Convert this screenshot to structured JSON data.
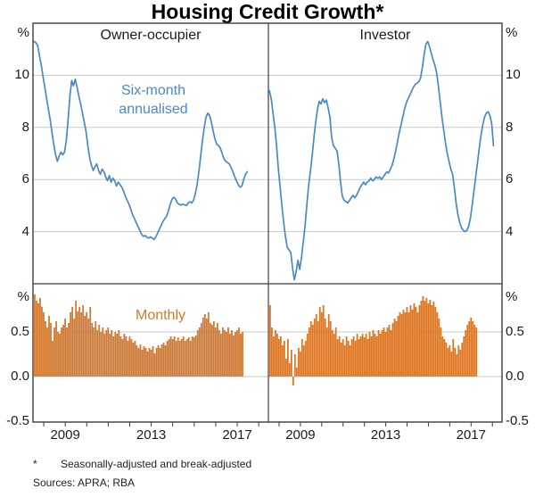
{
  "title": "Housing Credit Growth*",
  "footnote": {
    "marker": "*",
    "text": "Seasonally-adjusted and break-adjusted"
  },
  "sources": "Sources: APRA; RBA",
  "colors": {
    "line": "#4a89c8",
    "bar": "#d5782c",
    "grid": "#c9c9c9",
    "frame": "#3c3c3c",
    "text": "#1c1c1c"
  },
  "chart_data": [
    {
      "type": "line",
      "panel": "owner-occupier-six-month-annualised",
      "title": "Owner-occupier",
      "series_label": "Six-month annualised",
      "label_lines": [
        "Six-month",
        "annualised"
      ],
      "unit": "%",
      "ylim": [
        2,
        12
      ],
      "yticks": [
        10,
        8,
        6,
        4
      ],
      "ytick_labels": [
        "10",
        "8",
        "6",
        "4"
      ],
      "xlim": [
        2007.5,
        2018.45
      ],
      "xticks": [
        2009,
        2013,
        2017
      ],
      "xtick_labels": [
        "2009",
        "2013",
        "2017"
      ],
      "x_start": 2007.55,
      "x_step": "monthly",
      "values": [
        11.3,
        11.25,
        11.15,
        10.75,
        10.4,
        9.95,
        9.55,
        9.1,
        8.7,
        8.3,
        7.8,
        7.35,
        6.95,
        6.7,
        6.9,
        7.05,
        6.95,
        7.05,
        7.5,
        8.3,
        9.2,
        9.8,
        9.6,
        9.85,
        9.55,
        9.2,
        8.9,
        8.55,
        8.2,
        7.85,
        7.3,
        6.85,
        6.55,
        6.35,
        6.5,
        6.6,
        6.35,
        6.2,
        6.4,
        6.3,
        6.1,
        5.95,
        6.15,
        5.9,
        6.05,
        5.95,
        5.75,
        5.9,
        5.8,
        5.7,
        5.55,
        5.35,
        5.2,
        5.05,
        4.85,
        4.65,
        4.5,
        4.35,
        4.2,
        4.05,
        3.9,
        3.82,
        3.85,
        3.78,
        3.75,
        3.8,
        3.75,
        3.7,
        3.8,
        3.95,
        4.1,
        4.25,
        4.4,
        4.5,
        4.6,
        4.8,
        5.05,
        5.25,
        5.32,
        5.25,
        5.1,
        5.05,
        5.02,
        5.05,
        5.03,
        5.0,
        5.1,
        5.15,
        5.1,
        5.2,
        5.45,
        5.8,
        6.3,
        6.9,
        7.5,
        8.0,
        8.4,
        8.55,
        8.45,
        8.2,
        7.85,
        7.55,
        7.35,
        7.3,
        7.2,
        7.0,
        6.8,
        6.7,
        6.65,
        6.6,
        6.45,
        6.3,
        6.1,
        5.95,
        5.8,
        5.7,
        5.75,
        6.0,
        6.2,
        6.3
      ]
    },
    {
      "type": "line",
      "panel": "investor-six-month-annualised",
      "title": "Investor",
      "series_label": "Six-month annualised",
      "unit": "%",
      "ylim": [
        2,
        12
      ],
      "yticks": [
        10,
        8,
        6,
        4
      ],
      "ytick_labels": [
        "10",
        "8",
        "6",
        "4"
      ],
      "xlim": [
        2007.5,
        2018.45
      ],
      "xticks": [
        2009,
        2013,
        2017
      ],
      "xtick_labels": [
        "2009",
        "2013",
        "2017"
      ],
      "x_start": 2007.55,
      "x_step": "monthly",
      "values": [
        9.4,
        9.1,
        8.55,
        8.0,
        7.3,
        6.4,
        5.7,
        5.0,
        4.35,
        3.8,
        3.4,
        3.3,
        3.2,
        2.6,
        2.15,
        2.45,
        2.9,
        2.55,
        3.0,
        3.6,
        4.2,
        5.0,
        5.75,
        6.3,
        6.9,
        7.6,
        8.2,
        8.7,
        9.0,
        8.9,
        9.1,
        8.95,
        9.05,
        8.75,
        8.4,
        7.6,
        7.3,
        7.2,
        7.1,
        6.6,
        5.9,
        5.35,
        5.2,
        5.15,
        5.1,
        5.2,
        5.3,
        5.4,
        5.3,
        5.4,
        5.55,
        5.7,
        5.8,
        5.9,
        5.8,
        5.9,
        5.95,
        6.05,
        5.95,
        6.0,
        6.1,
        6.05,
        6.1,
        6.0,
        6.1,
        6.2,
        6.3,
        6.25,
        6.4,
        6.55,
        6.8,
        7.1,
        7.45,
        7.8,
        8.1,
        8.4,
        8.7,
        8.95,
        9.1,
        9.25,
        9.4,
        9.55,
        9.65,
        9.7,
        9.75,
        9.9,
        10.3,
        10.8,
        11.2,
        11.3,
        11.1,
        10.85,
        10.6,
        10.4,
        10.1,
        9.6,
        9.0,
        8.4,
        7.9,
        7.4,
        7.0,
        6.7,
        6.4,
        6.2,
        5.7,
        5.1,
        4.65,
        4.35,
        4.15,
        4.05,
        4.0,
        4.05,
        4.2,
        4.5,
        5.0,
        5.55,
        6.1,
        6.65,
        7.2,
        7.7,
        8.1,
        8.4,
        8.55,
        8.6,
        8.45,
        8.15,
        7.3
      ]
    },
    {
      "type": "bar",
      "panel": "owner-occupier-monthly",
      "series_label": "Monthly",
      "unit": "%",
      "ylim": [
        -0.51,
        1.04
      ],
      "yticks": [
        0.5,
        0.0,
        -0.5
      ],
      "ytick_labels": [
        "0.5",
        "0.0",
        "-0.5"
      ],
      "xlim": [
        2007.5,
        2018.45
      ],
      "xticks": [
        2009,
        2013,
        2017
      ],
      "xtick_labels": [
        "2009",
        "2013",
        "2017"
      ],
      "x_start": 2007.58,
      "x_step": "monthly",
      "values": [
        0.92,
        0.85,
        0.82,
        0.88,
        0.78,
        0.72,
        0.62,
        0.55,
        0.68,
        0.6,
        0.4,
        0.55,
        0.62,
        0.5,
        0.48,
        0.55,
        0.58,
        0.65,
        0.55,
        0.6,
        0.72,
        0.78,
        0.65,
        0.85,
        0.73,
        0.78,
        0.72,
        0.8,
        0.68,
        0.72,
        0.65,
        0.78,
        0.6,
        0.55,
        0.62,
        0.52,
        0.58,
        0.5,
        0.55,
        0.48,
        0.52,
        0.55,
        0.48,
        0.52,
        0.45,
        0.5,
        0.48,
        0.52,
        0.45,
        0.42,
        0.48,
        0.45,
        0.4,
        0.45,
        0.42,
        0.38,
        0.4,
        0.35,
        0.32,
        0.36,
        0.3,
        0.34,
        0.32,
        0.28,
        0.32,
        0.3,
        0.34,
        0.26,
        0.32,
        0.35,
        0.32,
        0.36,
        0.38,
        0.35,
        0.4,
        0.42,
        0.45,
        0.42,
        0.45,
        0.4,
        0.44,
        0.4,
        0.42,
        0.45,
        0.4,
        0.42,
        0.44,
        0.4,
        0.45,
        0.44,
        0.46,
        0.52,
        0.55,
        0.6,
        0.66,
        0.7,
        0.65,
        0.72,
        0.6,
        0.58,
        0.62,
        0.55,
        0.6,
        0.52,
        0.48,
        0.55,
        0.52,
        0.5,
        0.55,
        0.48,
        0.52,
        0.46,
        0.5,
        0.52,
        0.55,
        0.48,
        0.5
      ]
    },
    {
      "type": "bar",
      "panel": "investor-monthly",
      "series_label": "Monthly",
      "unit": "%",
      "ylim": [
        -0.51,
        1.04
      ],
      "yticks": [
        0.5,
        0.0,
        -0.5
      ],
      "ytick_labels": [
        "0.5",
        "0.0",
        "-0.5"
      ],
      "xlim": [
        2007.5,
        2018.45
      ],
      "xticks": [
        2009,
        2013,
        2017
      ],
      "xtick_labels": [
        "2009",
        "2013",
        "2017"
      ],
      "x_start": 2007.58,
      "x_step": "monthly",
      "values": [
        0.8,
        0.55,
        0.45,
        0.52,
        0.48,
        0.42,
        0.45,
        0.35,
        0.4,
        0.2,
        0.42,
        0.15,
        0.3,
        -0.1,
        0.25,
        0.1,
        0.32,
        0.28,
        0.42,
        0.35,
        0.4,
        0.48,
        0.55,
        0.62,
        0.58,
        0.65,
        0.7,
        0.62,
        0.78,
        0.72,
        0.8,
        0.65,
        0.55,
        0.7,
        0.62,
        0.52,
        0.48,
        0.55,
        0.42,
        0.45,
        0.38,
        0.42,
        0.35,
        0.45,
        0.4,
        0.35,
        0.42,
        0.45,
        0.4,
        0.48,
        0.42,
        0.45,
        0.48,
        0.44,
        0.48,
        0.42,
        0.5,
        0.45,
        0.52,
        0.48,
        0.45,
        0.52,
        0.48,
        0.52,
        0.55,
        0.5,
        0.55,
        0.58,
        0.52,
        0.6,
        0.65,
        0.62,
        0.68,
        0.72,
        0.7,
        0.75,
        0.72,
        0.78,
        0.72,
        0.8,
        0.75,
        0.82,
        0.78,
        0.72,
        0.8,
        0.85,
        0.9,
        0.85,
        0.88,
        0.82,
        0.86,
        0.8,
        0.84,
        0.78,
        0.72,
        0.65,
        0.55,
        0.45,
        0.42,
        0.38,
        0.32,
        0.35,
        0.28,
        0.42,
        0.32,
        0.25,
        0.35,
        0.3,
        0.38,
        0.45,
        0.52,
        0.58,
        0.62,
        0.66,
        0.62,
        0.58,
        0.55
      ]
    }
  ]
}
